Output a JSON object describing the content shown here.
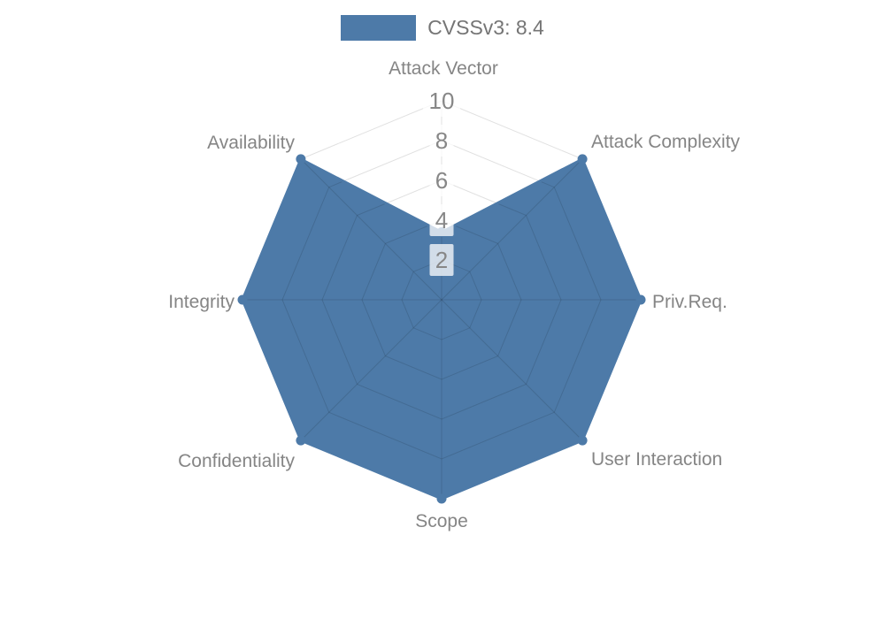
{
  "legend": {
    "label": "CVSSv3: 8.4"
  },
  "chart_data": {
    "type": "radar",
    "categories": [
      "Attack Vector",
      "Attack Complexity",
      "Priv.Req.",
      "User Interaction",
      "Scope",
      "Confidentiality",
      "Integrity",
      "Availability"
    ],
    "series": [
      {
        "name": "CVSSv3: 8.4",
        "values": [
          3.4,
          10,
          10,
          10,
          10,
          10,
          10,
          10
        ]
      }
    ],
    "ticks": [
      2,
      4,
      6,
      8,
      10
    ],
    "rmin": 0,
    "rmax": 10,
    "grid_shape": "polygon",
    "grid_on": true,
    "legend_position": "top",
    "colors": {
      "series_fill": "#4d7aa8",
      "series_line": "#4d7aa8",
      "grid_line": "rgba(0,0,0,0.12)",
      "tick_text": "#878787",
      "tick_backdrop": "rgba(255,255,255,0.75)",
      "point_label": "#858585",
      "legend_text": "#757575",
      "background": "#ffffff"
    }
  }
}
